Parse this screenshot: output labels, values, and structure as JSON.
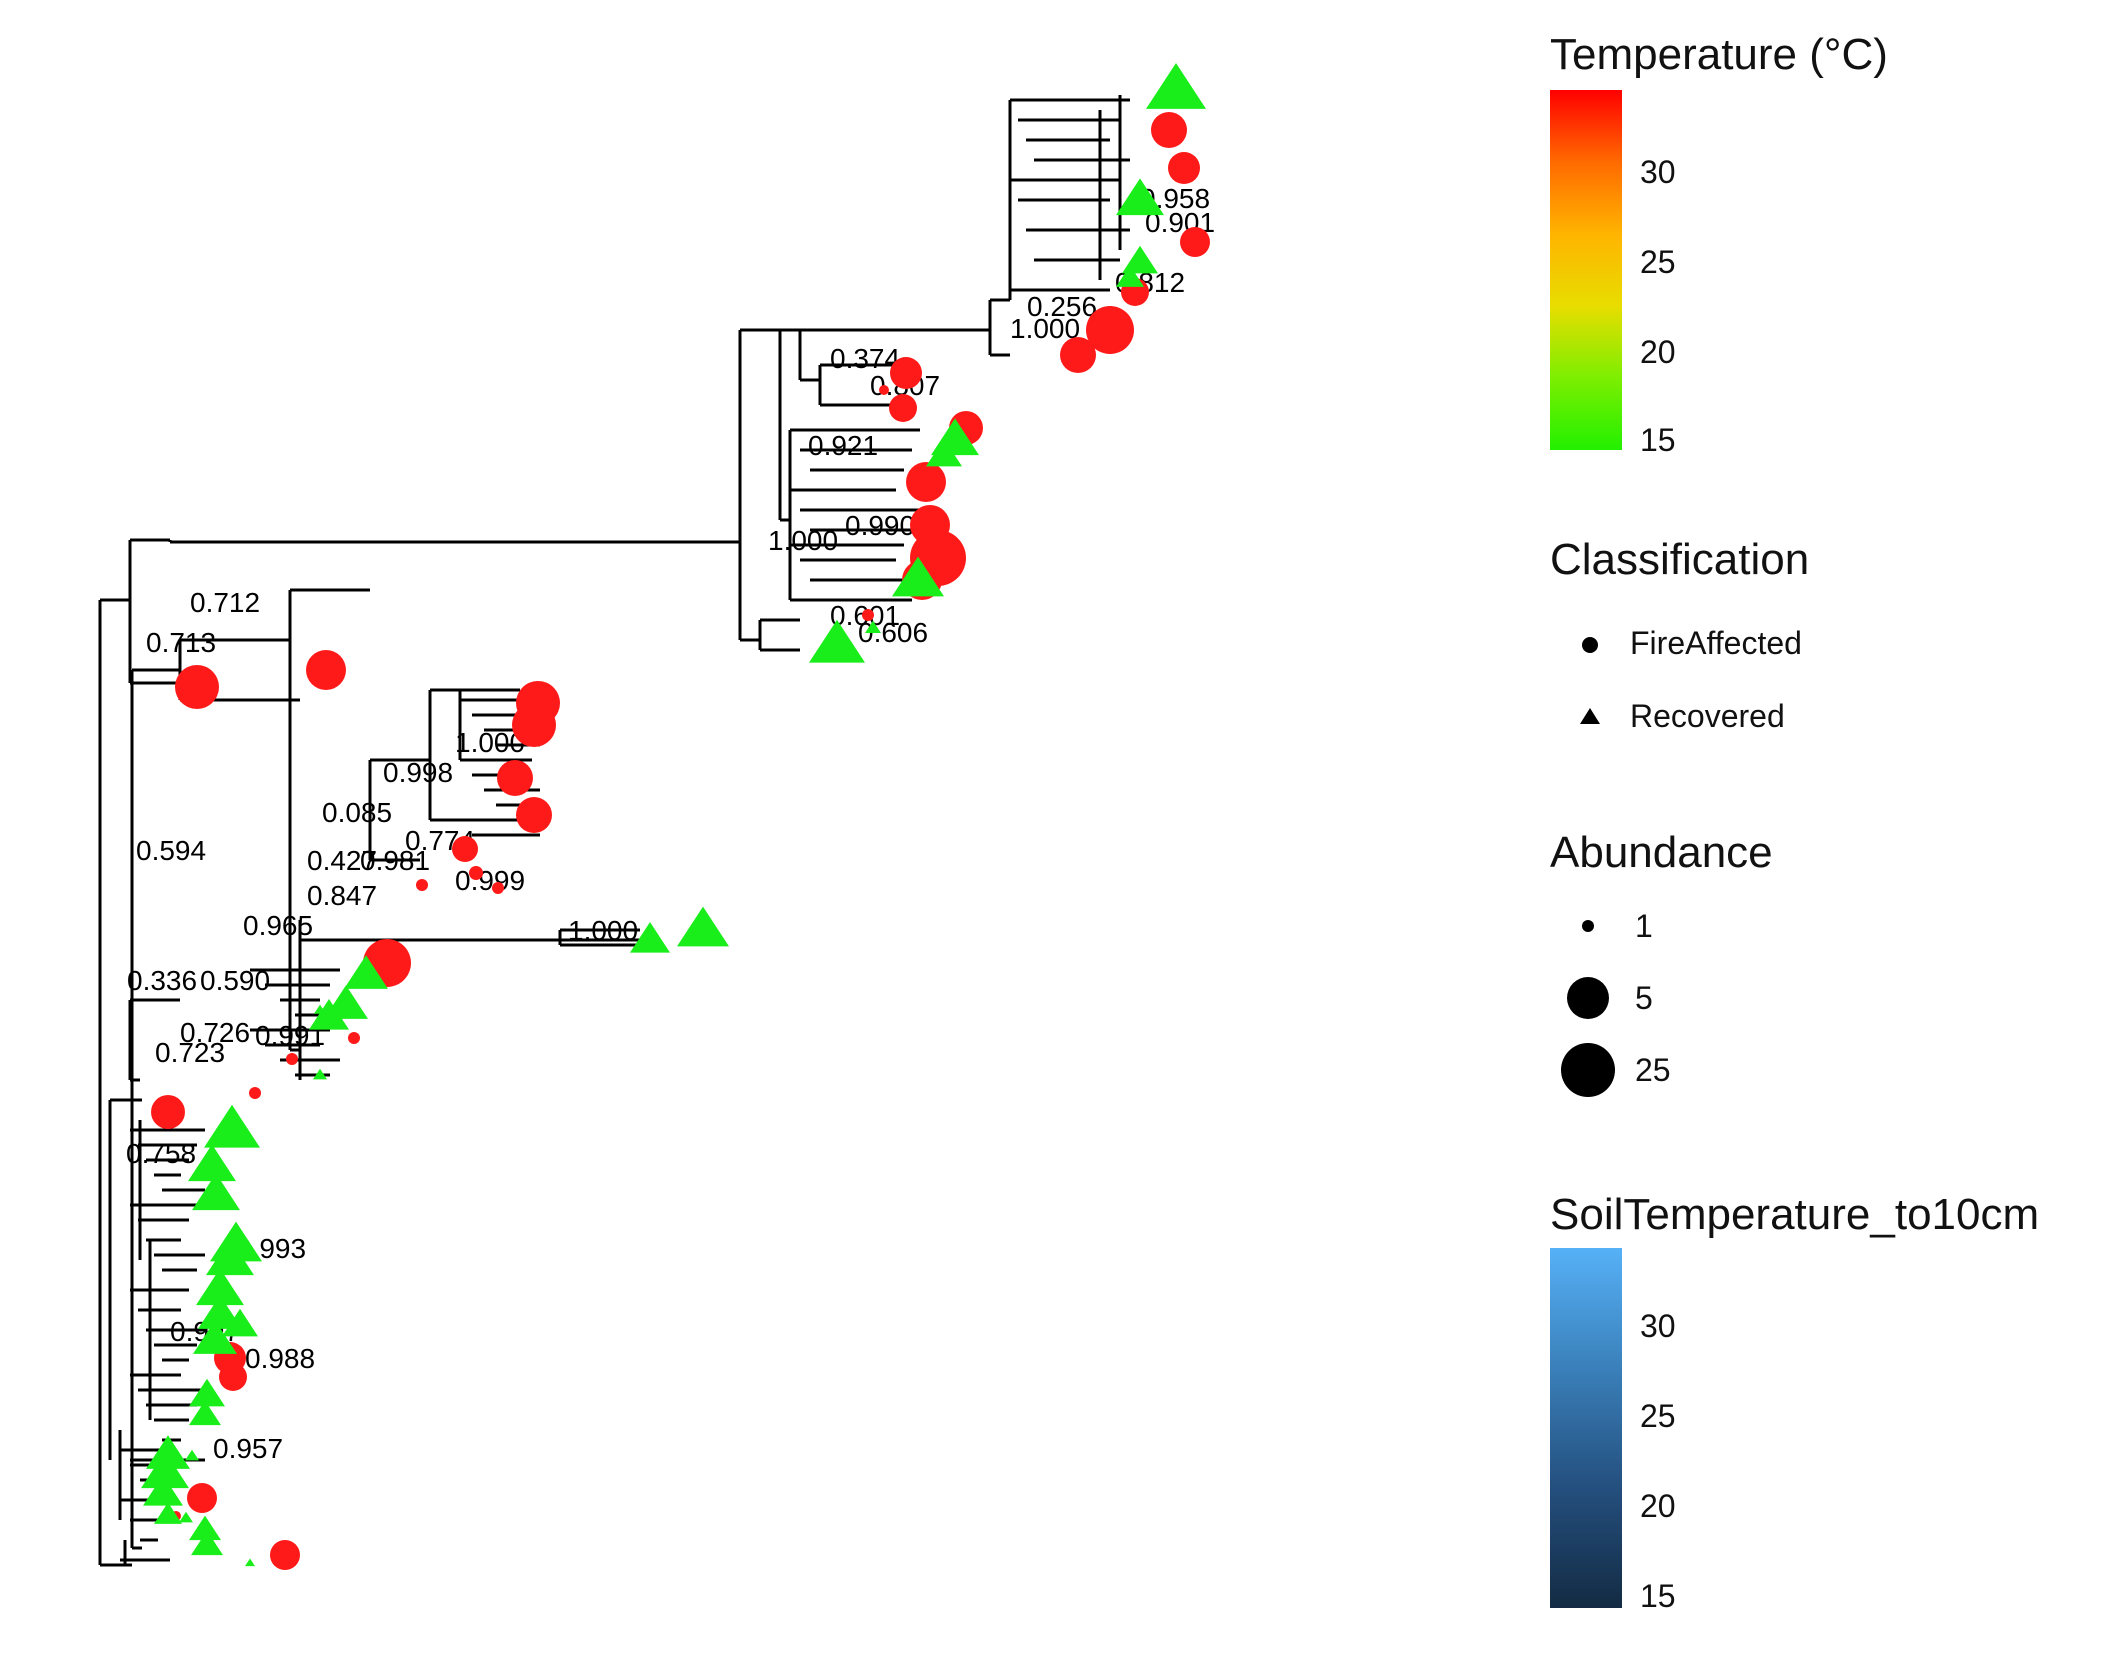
{
  "legends": {
    "temperature": {
      "title": "Temperature (°C)",
      "ticks": [
        "30",
        "25",
        "20",
        "15"
      ],
      "gradient": [
        "#ff0000",
        "#ff6a00",
        "#ffb400",
        "#e8dd00",
        "#7dee00",
        "#22f000"
      ]
    },
    "classification": {
      "title": "Classification",
      "items": [
        {
          "label": "FireAffected",
          "shape": "circle"
        },
        {
          "label": "Recovered",
          "shape": "triangle"
        }
      ]
    },
    "abundance": {
      "title": "Abundance",
      "items": [
        "1",
        "5",
        "25"
      ]
    },
    "soil": {
      "title": "SoilTemperature_to10cm",
      "ticks": [
        "30",
        "25",
        "20",
        "15"
      ],
      "gradient": [
        "#56b1f7",
        "#3a80ba",
        "#244f7e",
        "#132b43"
      ]
    }
  },
  "tree": {
    "node_labels": [
      "0.712",
      "0.713",
      "0.594",
      "0.336",
      "0.590",
      "0.723",
      "0.726",
      "0.991",
      "0.965",
      "0.847",
      "0.427",
      "0.981",
      "0.999",
      "0.085",
      "0.998",
      "1.000",
      "0.774",
      "1.000",
      "0.374",
      "0.807",
      "0.921",
      "1.000",
      "0.990",
      "0.601",
      "0.606",
      "0.256",
      "1.000",
      "0.901",
      "0.812",
      "0.958",
      "0.758",
      "0.988",
      "0.993",
      "0.957",
      "0.997"
    ],
    "colors": {
      "fire": "#ff1a1a",
      "recovered": "#1aee1a"
    }
  }
}
